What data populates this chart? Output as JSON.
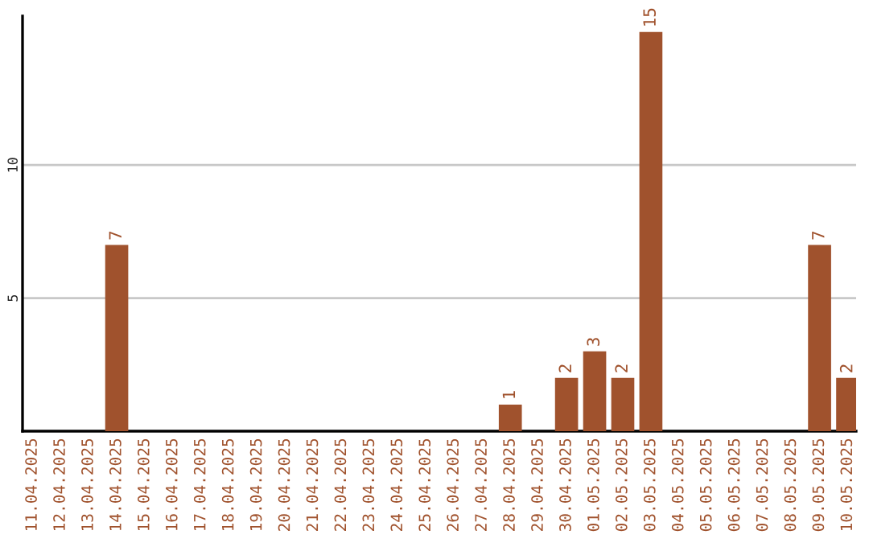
{
  "chart_data": {
    "type": "bar",
    "categories": [
      "11.04.2025",
      "12.04.2025",
      "13.04.2025",
      "14.04.2025",
      "15.04.2025",
      "16.04.2025",
      "17.04.2025",
      "18.04.2025",
      "19.04.2025",
      "20.04.2025",
      "21.04.2025",
      "22.04.2025",
      "23.04.2025",
      "24.04.2025",
      "25.04.2025",
      "26.04.2025",
      "27.04.2025",
      "28.04.2025",
      "29.04.2025",
      "30.04.2025",
      "01.05.2025",
      "02.05.2025",
      "03.05.2025",
      "04.05.2025",
      "05.05.2025",
      "06.05.2025",
      "07.05.2025",
      "08.05.2025",
      "09.05.2025",
      "10.05.2025"
    ],
    "values": [
      0,
      0,
      0,
      7,
      0,
      0,
      0,
      0,
      0,
      0,
      0,
      0,
      0,
      0,
      0,
      0,
      0,
      1,
      0,
      2,
      3,
      2,
      15,
      0,
      0,
      0,
      0,
      0,
      7,
      2
    ],
    "value_labels": [
      null,
      null,
      null,
      "7",
      null,
      null,
      null,
      null,
      null,
      null,
      null,
      null,
      null,
      null,
      null,
      null,
      null,
      "1",
      null,
      "2",
      "3",
      "2",
      "15",
      null,
      null,
      null,
      null,
      null,
      "7",
      "2"
    ],
    "color": "#a0522d",
    "ylim": [
      0,
      15.6
    ],
    "yticks": [
      5,
      10
    ],
    "grid": "y",
    "legend": false
  }
}
